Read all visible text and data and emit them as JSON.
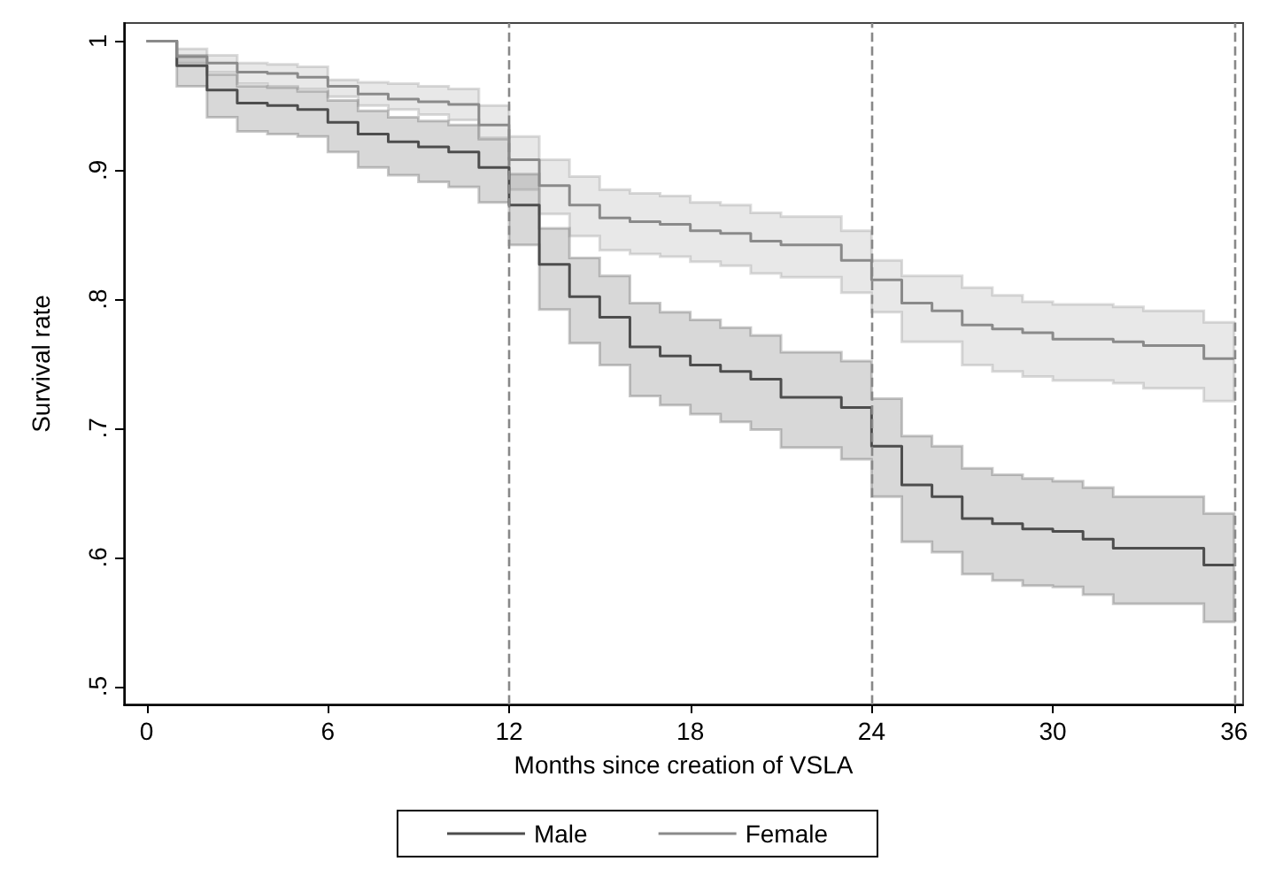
{
  "chart_data": {
    "type": "step",
    "xlabel": "Months since creation of VSLA",
    "ylabel": "Survival rate",
    "x": [
      0,
      1,
      2,
      3,
      4,
      5,
      6,
      7,
      8,
      9,
      10,
      11,
      12,
      13,
      14,
      15,
      16,
      17,
      18,
      19,
      20,
      21,
      22,
      23,
      24,
      25,
      26,
      27,
      28,
      29,
      30,
      31,
      32,
      33,
      34,
      35,
      36
    ],
    "series": [
      {
        "name": "Male",
        "color": "#4d4d4d",
        "values": [
          1,
          0.981,
          0.962,
          0.952,
          0.95,
          0.947,
          0.937,
          0.928,
          0.922,
          0.918,
          0.914,
          0.902,
          0.873,
          0.827,
          0.802,
          0.786,
          0.763,
          0.756,
          0.749,
          0.744,
          0.738,
          0.724,
          0.724,
          0.716,
          0.686,
          0.656,
          0.647,
          0.63,
          0.626,
          0.622,
          0.62,
          0.614,
          0.607,
          0.607,
          0.607,
          0.594,
          0.594
        ],
        "lower": [
          1,
          0.965,
          0.941,
          0.93,
          0.928,
          0.926,
          0.914,
          0.902,
          0.896,
          0.891,
          0.887,
          0.875,
          0.842,
          0.792,
          0.766,
          0.749,
          0.725,
          0.718,
          0.711,
          0.705,
          0.699,
          0.685,
          0.685,
          0.676,
          0.647,
          0.612,
          0.604,
          0.587,
          0.582,
          0.578,
          0.577,
          0.571,
          0.564,
          0.564,
          0.564,
          0.55,
          0.55
        ],
        "upper": [
          1,
          0.989,
          0.974,
          0.965,
          0.964,
          0.961,
          0.954,
          0.946,
          0.941,
          0.938,
          0.935,
          0.924,
          0.897,
          0.855,
          0.832,
          0.818,
          0.797,
          0.79,
          0.784,
          0.778,
          0.772,
          0.759,
          0.759,
          0.752,
          0.723,
          0.694,
          0.686,
          0.669,
          0.664,
          0.661,
          0.659,
          0.654,
          0.647,
          0.647,
          0.647,
          0.634,
          0.634
        ]
      },
      {
        "name": "Female",
        "color": "#8a8a8a",
        "values": [
          1,
          0.988,
          0.983,
          0.976,
          0.975,
          0.972,
          0.965,
          0.959,
          0.955,
          0.953,
          0.951,
          0.935,
          0.908,
          0.888,
          0.873,
          0.863,
          0.86,
          0.858,
          0.853,
          0.851,
          0.845,
          0.842,
          0.842,
          0.83,
          0.815,
          0.797,
          0.791,
          0.78,
          0.777,
          0.774,
          0.769,
          0.769,
          0.767,
          0.764,
          0.764,
          0.754,
          0.754
        ],
        "lower": [
          1,
          0.983,
          0.976,
          0.967,
          0.965,
          0.963,
          0.957,
          0.95,
          0.947,
          0.943,
          0.939,
          0.925,
          0.885,
          0.866,
          0.849,
          0.838,
          0.835,
          0.833,
          0.829,
          0.826,
          0.82,
          0.817,
          0.817,
          0.805,
          0.79,
          0.767,
          0.767,
          0.749,
          0.744,
          0.74,
          0.737,
          0.737,
          0.735,
          0.731,
          0.731,
          0.721,
          0.721
        ],
        "upper": [
          1,
          0.994,
          0.989,
          0.983,
          0.982,
          0.98,
          0.97,
          0.968,
          0.967,
          0.965,
          0.963,
          0.95,
          0.926,
          0.908,
          0.895,
          0.885,
          0.882,
          0.88,
          0.875,
          0.873,
          0.867,
          0.864,
          0.864,
          0.853,
          0.83,
          0.818,
          0.818,
          0.809,
          0.803,
          0.798,
          0.796,
          0.796,
          0.794,
          0.791,
          0.791,
          0.782,
          0.782
        ]
      }
    ],
    "xlim": [
      -0.75,
      36.3
    ],
    "xticks": [
      0,
      6,
      12,
      18,
      24,
      30,
      36
    ],
    "ylim": [
      0.486,
      1.014
    ],
    "yticks": [
      {
        "value": 0.5,
        "label": ".5"
      },
      {
        "value": 0.6,
        "label": ".6"
      },
      {
        "value": 0.7,
        "label": ".7"
      },
      {
        "value": 0.8,
        "label": ".8"
      },
      {
        "value": 0.9,
        "label": ".9"
      },
      1
    ],
    "ref_lines": [
      {
        "axis": "x",
        "value": 12,
        "color": "#888888",
        "line_style": "dashed"
      },
      {
        "axis": "x",
        "value": 24,
        "color": "#888888",
        "line_style": "dashed"
      },
      {
        "axis": "x",
        "value": 36,
        "color": "#888888",
        "line_style": "dashed"
      }
    ],
    "legend": "bottom",
    "grid": false
  }
}
